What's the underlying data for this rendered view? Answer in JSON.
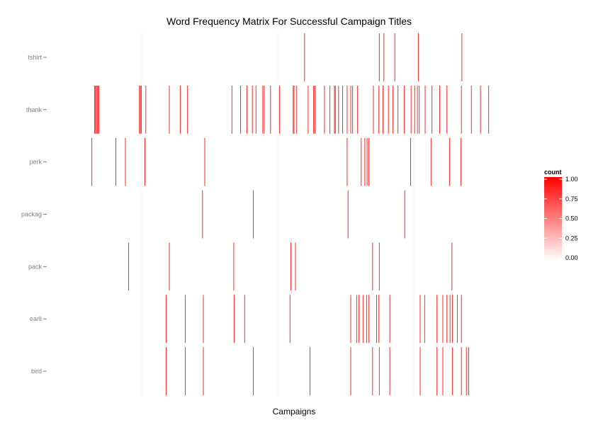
{
  "chart_data": {
    "type": "heatmap",
    "title": "Word Frequency Matrix For Successful Campaign Titles",
    "xlabel": "Campaigns",
    "ylabel": "",
    "rows": [
      "tshirt",
      "thank",
      "perk",
      "packag",
      "pack",
      "earli",
      "bird"
    ],
    "x_range": [
      0,
      1000
    ],
    "x_ticks_unlabeled": [
      200,
      500,
      800
    ],
    "grid": true,
    "legend": {
      "title": "count",
      "placement": "right",
      "ticks": [
        "1.00",
        "0.75",
        "0.50",
        "0.25",
        "0.00"
      ],
      "tick_values": [
        1.0,
        0.75,
        0.5,
        0.25,
        0.0
      ],
      "low_color": "#ffffff",
      "high_color": "#ff0000"
    },
    "cells": {
      "tshirt": [
        559,
        724,
        734,
        758,
        810,
        906
      ],
      "thank": [
        96,
        98,
        100,
        102,
        104,
        106,
        195,
        197,
        199,
        209,
        261,
        285,
        301,
        399,
        418,
        432,
        444,
        452,
        467,
        470,
        484,
        504,
        534,
        536,
        541,
        567,
        579,
        582,
        603,
        615,
        625,
        627,
        634,
        643,
        653,
        661,
        665,
        676,
        711,
        723,
        732,
        744,
        754,
        765,
        779,
        794,
        802,
        808,
        812,
        825,
        840,
        857,
        873,
        905,
        927,
        947,
        965
      ],
      "perk": [
        90,
        143,
        164,
        207,
        339,
        653,
        684,
        692,
        697,
        701,
        793,
        838,
        879,
        904
      ],
      "packag": [
        334,
        446,
        655,
        780
      ],
      "pack": [
        171,
        261,
        403,
        529,
        539,
        709,
        724,
        884
      ],
      "earli": [
        254,
        296,
        336,
        404,
        427,
        527,
        661,
        674,
        679,
        688,
        696,
        701,
        718,
        723,
        747,
        814,
        824,
        851,
        864,
        873,
        880,
        885,
        896,
        905
      ],
      "bird": [
        254,
        296,
        336,
        446,
        571,
        661,
        709,
        724,
        747,
        814,
        851,
        864,
        885,
        905,
        916,
        921
      ]
    }
  }
}
